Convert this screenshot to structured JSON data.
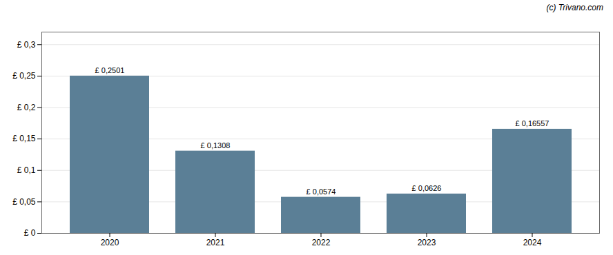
{
  "chart_data": {
    "type": "bar",
    "categories": [
      "2020",
      "2021",
      "2022",
      "2023",
      "2024"
    ],
    "values": [
      0.2501,
      0.1308,
      0.0574,
      0.0626,
      0.16557
    ],
    "value_labels": [
      "£ 0,2501",
      "£ 0,1308",
      "£ 0,0574",
      "£ 0,0626",
      "£ 0,16557"
    ],
    "data_labels": true,
    "color": "#5b7f96",
    "ylim": [
      0,
      0.32
    ],
    "yticks": [
      {
        "value": 0,
        "label": "£ 0"
      },
      {
        "value": 0.05,
        "label": "£ 0,05"
      },
      {
        "value": 0.1,
        "label": "£ 0,1"
      },
      {
        "value": 0.15,
        "label": "£ 0,15"
      },
      {
        "value": 0.2,
        "label": "£ 0,2"
      },
      {
        "value": 0.25,
        "label": "£ 0,25"
      },
      {
        "value": 0.3,
        "label": "£ 0,3"
      }
    ],
    "grid": true,
    "annotations": [
      "(c) Trivano.com"
    ]
  }
}
